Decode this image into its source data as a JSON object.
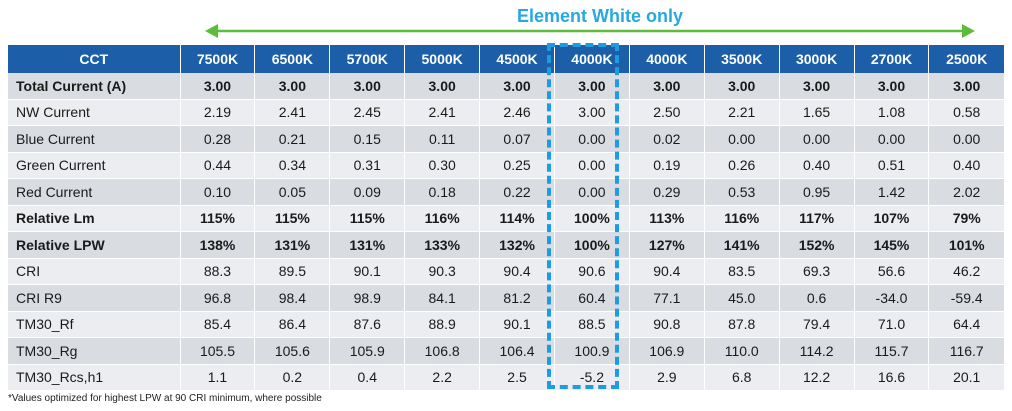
{
  "banner": {
    "title": "Element White only",
    "arrow_color": "#5bbd3a"
  },
  "table": {
    "header_label": "CCT",
    "columns": [
      "7500K",
      "6500K",
      "5700K",
      "5000K",
      "4500K",
      "4000K",
      "4000K",
      "3500K",
      "3000K",
      "2700K",
      "2500K"
    ],
    "highlight_column_index": 5,
    "colors": {
      "header_bg": "#1c5ea8",
      "header_text": "#ffffff",
      "row_shade": "#d9dce1",
      "row_plain": "#ecedf0",
      "highlight_border": "#1f9ce0"
    },
    "rows": [
      {
        "label": "Total Current (A)",
        "bold": true,
        "values": [
          "3.00",
          "3.00",
          "3.00",
          "3.00",
          "3.00",
          "3.00",
          "3.00",
          "3.00",
          "3.00",
          "3.00",
          "3.00"
        ]
      },
      {
        "label": "NW Current",
        "bold": false,
        "values": [
          "2.19",
          "2.41",
          "2.45",
          "2.41",
          "2.46",
          "3.00",
          "2.50",
          "2.21",
          "1.65",
          "1.08",
          "0.58"
        ]
      },
      {
        "label": "Blue Current",
        "bold": false,
        "values": [
          "0.28",
          "0.21",
          "0.15",
          "0.11",
          "0.07",
          "0.00",
          "0.02",
          "0.00",
          "0.00",
          "0.00",
          "0.00"
        ]
      },
      {
        "label": "Green Current",
        "bold": false,
        "values": [
          "0.44",
          "0.34",
          "0.31",
          "0.30",
          "0.25",
          "0.00",
          "0.19",
          "0.26",
          "0.40",
          "0.51",
          "0.40"
        ]
      },
      {
        "label": "Red Current",
        "bold": false,
        "values": [
          "0.10",
          "0.05",
          "0.09",
          "0.18",
          "0.22",
          "0.00",
          "0.29",
          "0.53",
          "0.95",
          "1.42",
          "2.02"
        ]
      },
      {
        "label": "Relative Lm",
        "bold": true,
        "values": [
          "115%",
          "115%",
          "115%",
          "116%",
          "114%",
          "100%",
          "113%",
          "116%",
          "117%",
          "107%",
          "79%"
        ]
      },
      {
        "label": "Relative LPW",
        "bold": true,
        "values": [
          "138%",
          "131%",
          "131%",
          "133%",
          "132%",
          "100%",
          "127%",
          "141%",
          "152%",
          "145%",
          "101%"
        ]
      },
      {
        "label": "CRI",
        "bold": false,
        "values": [
          "88.3",
          "89.5",
          "90.1",
          "90.3",
          "90.4",
          "90.6",
          "90.4",
          "83.5",
          "69.3",
          "56.6",
          "46.2"
        ]
      },
      {
        "label": "CRI R9",
        "bold": false,
        "values": [
          "96.8",
          "98.4",
          "98.9",
          "84.1",
          "81.2",
          "60.4",
          "77.1",
          "45.0",
          "0.6",
          "-34.0",
          "-59.4"
        ]
      },
      {
        "label": "TM30_Rf",
        "bold": false,
        "values": [
          "85.4",
          "86.4",
          "87.6",
          "88.9",
          "90.1",
          "88.5",
          "90.8",
          "87.8",
          "79.4",
          "71.0",
          "64.4"
        ]
      },
      {
        "label": "TM30_Rg",
        "bold": false,
        "values": [
          "105.5",
          "105.6",
          "105.9",
          "106.8",
          "106.4",
          "100.9",
          "106.9",
          "110.0",
          "114.2",
          "115.7",
          "116.7"
        ]
      },
      {
        "label": "TM30_Rcs,h1",
        "bold": false,
        "values": [
          "1.1",
          "0.2",
          "0.4",
          "2.2",
          "2.5",
          "-5.2",
          "2.9",
          "6.8",
          "12.2",
          "16.6",
          "20.1"
        ]
      }
    ]
  },
  "footnote": "*Values optimized for highest LPW at 90 CRI minimum, where possible"
}
